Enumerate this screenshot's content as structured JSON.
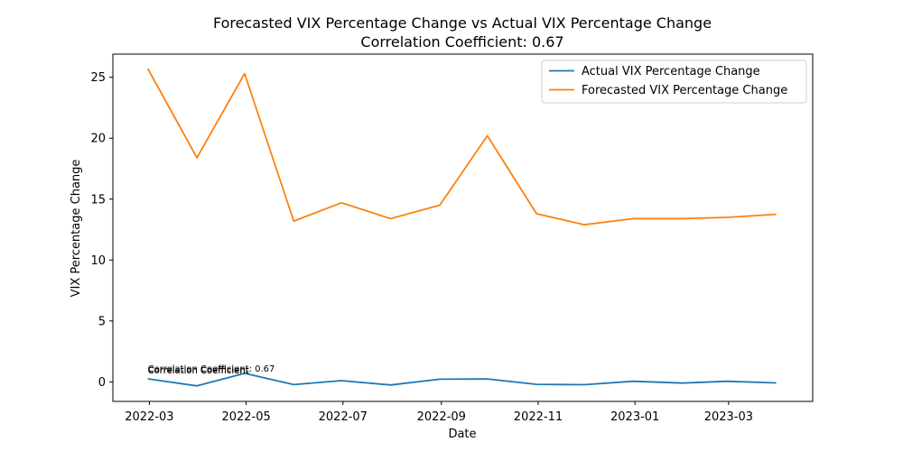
{
  "chart_data": {
    "type": "line",
    "title": "Forecasted VIX Percentage Change vs Actual VIX Percentage Change",
    "subtitle": "Correlation Coefficient: 0.67",
    "xlabel": "Date",
    "ylabel": "VIX Percentage Change",
    "x": [
      "2022-02-28",
      "2022-03-31",
      "2022-04-30",
      "2022-05-31",
      "2022-06-30",
      "2022-07-31",
      "2022-08-31",
      "2022-09-30",
      "2022-10-31",
      "2022-11-30",
      "2022-12-31",
      "2023-01-31",
      "2023-02-28",
      "2023-03-31"
    ],
    "x_ticks": [
      "2022-03",
      "2022-05",
      "2022-07",
      "2022-09",
      "2022-11",
      "2023-01",
      "2023-03"
    ],
    "x_range": [
      "2022-02-06",
      "2023-04-23"
    ],
    "ylim": [
      -1.6,
      26.9
    ],
    "y_ticks": [
      0,
      5,
      10,
      15,
      20,
      25
    ],
    "grid": false,
    "legend_position": "top-right",
    "series": [
      {
        "name": "Actual VIX Percentage Change",
        "color": "#1f77b4",
        "values": [
          0.25,
          -0.33,
          0.7,
          -0.22,
          0.1,
          -0.25,
          0.22,
          0.24,
          -0.2,
          -0.23,
          0.05,
          -0.1,
          0.05,
          -0.08
        ]
      },
      {
        "name": "Forecasted VIX Percentage Change",
        "color": "#ff7f0e",
        "values": [
          25.7,
          18.4,
          25.3,
          13.2,
          14.7,
          13.4,
          14.5,
          20.2,
          13.8,
          12.9,
          13.4,
          13.4,
          13.5,
          13.75
        ]
      }
    ],
    "annotations": [
      {
        "text": "Correlation Coefficient: 0.67",
        "x": "2022-02-28",
        "y": 0.7
      },
      {
        "text": "Correlation Coefficient",
        "x": "2022-02-28",
        "y": 0.55
      },
      {
        "text": "Correlation Coefficient",
        "x": "2022-02-28",
        "y": 0.6
      }
    ]
  }
}
